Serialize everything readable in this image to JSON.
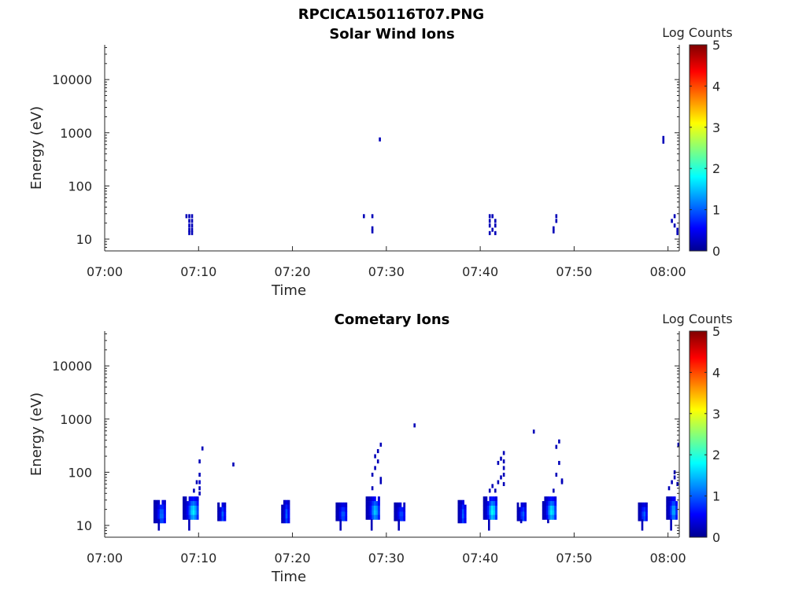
{
  "figure_title": "RPCICA150116T07.PNG",
  "chart_data": [
    {
      "type": "heatmap",
      "title": "Solar Wind Ions",
      "xlabel": "Time",
      "ylabel": "Energy (eV)",
      "x_ticks": [
        "07:00",
        "07:10",
        "07:20",
        "07:30",
        "07:40",
        "07:50",
        "08:00"
      ],
      "x_range_minutes": [
        0,
        61.2
      ],
      "y_scale": "log",
      "y_ticks": [
        "10",
        "100",
        "1000",
        "10000"
      ],
      "y_range": [
        6,
        45000
      ],
      "colorbar": {
        "label": "Log Counts",
        "ticks": [
          "0",
          "1",
          "2",
          "3",
          "4",
          "5"
        ],
        "range": [
          0,
          5
        ],
        "colormap": "jet"
      },
      "grid": false,
      "cells": [
        {
          "t": 8.6,
          "e": 27,
          "v": 0.2
        },
        {
          "t": 8.9,
          "e": 27,
          "v": 0.2
        },
        {
          "t": 9.2,
          "e": 27,
          "v": 0.2
        },
        {
          "t": 8.9,
          "e": 22,
          "v": 0.2
        },
        {
          "t": 9.2,
          "e": 22,
          "v": 0.2
        },
        {
          "t": 8.9,
          "e": 18,
          "v": 0.25
        },
        {
          "t": 9.2,
          "e": 18,
          "v": 0.2
        },
        {
          "t": 8.9,
          "e": 15,
          "v": 0.2
        },
        {
          "t": 9.2,
          "e": 15,
          "v": 0.2
        },
        {
          "t": 8.9,
          "e": 13,
          "v": 0.2
        },
        {
          "t": 9.2,
          "e": 13,
          "v": 0.2
        },
        {
          "t": 27.5,
          "e": 27,
          "v": 0.2
        },
        {
          "t": 28.4,
          "e": 27,
          "v": 0.2
        },
        {
          "t": 28.4,
          "e": 16,
          "v": 0.2
        },
        {
          "t": 28.4,
          "e": 14,
          "v": 0.2
        },
        {
          "t": 29.2,
          "e": 750,
          "v": 0.2
        },
        {
          "t": 40.9,
          "e": 27,
          "v": 0.2
        },
        {
          "t": 41.2,
          "e": 27,
          "v": 0.2
        },
        {
          "t": 40.9,
          "e": 22,
          "v": 0.2
        },
        {
          "t": 41.5,
          "e": 22,
          "v": 0.2
        },
        {
          "t": 40.9,
          "e": 18,
          "v": 0.2
        },
        {
          "t": 41.5,
          "e": 18,
          "v": 0.2
        },
        {
          "t": 41.2,
          "e": 15,
          "v": 0.2
        },
        {
          "t": 40.9,
          "e": 13,
          "v": 0.2
        },
        {
          "t": 41.5,
          "e": 13,
          "v": 0.2
        },
        {
          "t": 48.0,
          "e": 27,
          "v": 0.2
        },
        {
          "t": 48.0,
          "e": 22,
          "v": 0.2
        },
        {
          "t": 47.7,
          "e": 16,
          "v": 0.2
        },
        {
          "t": 47.7,
          "e": 14,
          "v": 0.2
        },
        {
          "t": 59.4,
          "e": 800,
          "v": 0.2
        },
        {
          "t": 59.4,
          "e": 680,
          "v": 0.2
        },
        {
          "t": 60.6,
          "e": 27,
          "v": 0.2
        },
        {
          "t": 60.3,
          "e": 22,
          "v": 0.2
        },
        {
          "t": 60.6,
          "e": 18,
          "v": 0.2
        },
        {
          "t": 60.9,
          "e": 15,
          "v": 0.2
        },
        {
          "t": 60.9,
          "e": 13,
          "v": 0.2
        }
      ]
    },
    {
      "type": "heatmap",
      "title": "Cometary Ions",
      "xlabel": "Time",
      "ylabel": "Energy (eV)",
      "x_ticks": [
        "07:00",
        "07:10",
        "07:20",
        "07:30",
        "07:40",
        "07:50",
        "08:00"
      ],
      "x_range_minutes": [
        0,
        61.2
      ],
      "y_scale": "log",
      "y_ticks": [
        "10",
        "100",
        "1000",
        "10000"
      ],
      "y_range": [
        6,
        45000
      ],
      "colorbar": {
        "label": "Log Counts",
        "ticks": [
          "0",
          "1",
          "2",
          "3",
          "4",
          "5"
        ],
        "range": [
          0,
          5
        ],
        "colormap": "jet"
      },
      "grid": false,
      "blocks": [
        {
          "t0": 5.2,
          "t1": 6.5,
          "e0": 13,
          "e1": 30,
          "v": 1.0,
          "tail": 8
        },
        {
          "t0": 8.3,
          "t1": 10.0,
          "e0": 13,
          "e1": 35,
          "v": 1.6,
          "tail": 8
        },
        {
          "t0": 12.0,
          "t1": 12.9,
          "e0": 13,
          "e1": 27,
          "v": 0.9,
          "tail": 13
        },
        {
          "t0": 18.8,
          "t1": 19.7,
          "e0": 13,
          "e1": 30,
          "v": 0.9,
          "tail": 13
        },
        {
          "t0": 24.6,
          "t1": 25.8,
          "e0": 13,
          "e1": 27,
          "v": 0.9,
          "tail": 8
        },
        {
          "t0": 27.8,
          "t1": 29.3,
          "e0": 13,
          "e1": 35,
          "v": 1.4,
          "tail": 8
        },
        {
          "t0": 30.8,
          "t1": 32.0,
          "e0": 13,
          "e1": 27,
          "v": 0.8,
          "tail": 8
        },
        {
          "t0": 37.6,
          "t1": 38.5,
          "e0": 13,
          "e1": 30,
          "v": 0.9,
          "tail": 13
        },
        {
          "t0": 40.3,
          "t1": 41.8,
          "e0": 13,
          "e1": 35,
          "v": 1.7,
          "tail": 8
        },
        {
          "t0": 43.9,
          "t1": 44.9,
          "e0": 13,
          "e1": 27,
          "v": 0.9,
          "tail": 11
        },
        {
          "t0": 46.6,
          "t1": 48.1,
          "e0": 13,
          "e1": 35,
          "v": 1.6,
          "tail": 11
        },
        {
          "t0": 56.8,
          "t1": 57.8,
          "e0": 13,
          "e1": 27,
          "v": 0.9,
          "tail": 8
        },
        {
          "t0": 59.8,
          "t1": 61.0,
          "e0": 13,
          "e1": 35,
          "v": 1.3,
          "tail": 8
        }
      ],
      "cells": [
        {
          "t": 10.0,
          "e": 40,
          "v": 0.2
        },
        {
          "t": 10.0,
          "e": 50,
          "v": 0.2
        },
        {
          "t": 10.0,
          "e": 65,
          "v": 0.3
        },
        {
          "t": 10.0,
          "e": 90,
          "v": 0.2
        },
        {
          "t": 10.0,
          "e": 160,
          "v": 0.2
        },
        {
          "t": 10.3,
          "e": 280,
          "v": 0.2
        },
        {
          "t": 9.4,
          "e": 45,
          "v": 0.2
        },
        {
          "t": 9.7,
          "e": 65,
          "v": 0.2
        },
        {
          "t": 13.6,
          "e": 140,
          "v": 0.2
        },
        {
          "t": 28.4,
          "e": 50,
          "v": 0.2
        },
        {
          "t": 28.4,
          "e": 90,
          "v": 0.2
        },
        {
          "t": 28.7,
          "e": 120,
          "v": 0.2
        },
        {
          "t": 28.7,
          "e": 200,
          "v": 0.2
        },
        {
          "t": 29.0,
          "e": 160,
          "v": 0.2
        },
        {
          "t": 29.0,
          "e": 250,
          "v": 0.2
        },
        {
          "t": 29.3,
          "e": 330,
          "v": 0.2
        },
        {
          "t": 29.3,
          "e": 75,
          "v": 0.2
        },
        {
          "t": 29.3,
          "e": 65,
          "v": 0.2
        },
        {
          "t": 32.9,
          "e": 760,
          "v": 0.2
        },
        {
          "t": 40.9,
          "e": 45,
          "v": 0.2
        },
        {
          "t": 41.2,
          "e": 55,
          "v": 0.2
        },
        {
          "t": 41.5,
          "e": 45,
          "v": 0.2
        },
        {
          "t": 41.8,
          "e": 65,
          "v": 0.2
        },
        {
          "t": 42.1,
          "e": 80,
          "v": 0.2
        },
        {
          "t": 41.8,
          "e": 150,
          "v": 0.2
        },
        {
          "t": 42.1,
          "e": 180,
          "v": 0.2
        },
        {
          "t": 42.4,
          "e": 60,
          "v": 0.2
        },
        {
          "t": 42.4,
          "e": 90,
          "v": 0.2
        },
        {
          "t": 42.4,
          "e": 120,
          "v": 0.2
        },
        {
          "t": 42.4,
          "e": 160,
          "v": 0.2
        },
        {
          "t": 42.4,
          "e": 230,
          "v": 0.2
        },
        {
          "t": 45.6,
          "e": 580,
          "v": 0.2
        },
        {
          "t": 47.7,
          "e": 45,
          "v": 0.2
        },
        {
          "t": 48.0,
          "e": 90,
          "v": 0.2
        },
        {
          "t": 48.3,
          "e": 150,
          "v": 0.2
        },
        {
          "t": 48.0,
          "e": 300,
          "v": 0.2
        },
        {
          "t": 48.3,
          "e": 380,
          "v": 0.2
        },
        {
          "t": 48.6,
          "e": 65,
          "v": 0.2
        },
        {
          "t": 48.6,
          "e": 70,
          "v": 0.2
        },
        {
          "t": 60.0,
          "e": 50,
          "v": 0.2
        },
        {
          "t": 60.3,
          "e": 65,
          "v": 0.2
        },
        {
          "t": 60.6,
          "e": 80,
          "v": 0.2
        },
        {
          "t": 60.6,
          "e": 100,
          "v": 0.2
        },
        {
          "t": 60.9,
          "e": 60,
          "v": 0.2
        },
        {
          "t": 61.0,
          "e": 330,
          "v": 0.2
        }
      ]
    }
  ]
}
